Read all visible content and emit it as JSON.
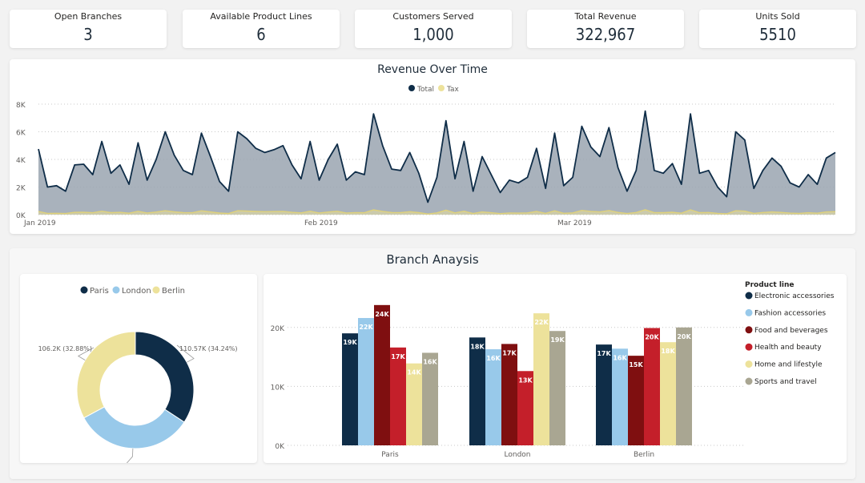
{
  "kpis": [
    {
      "label": "Open Branches",
      "value": "3"
    },
    {
      "label": "Available Product Lines",
      "value": "6"
    },
    {
      "label": "Customers Served",
      "value": "1,000"
    },
    {
      "label": "Total Revenue",
      "value": "322,967"
    },
    {
      "label": "Units Sold",
      "value": "5510"
    }
  ],
  "colors": {
    "navy": "#0f2d48",
    "area": "#9aa5b0",
    "tax": "#ede29b",
    "lightblue": "#98c9ea",
    "darkred": "#7f0f10",
    "red": "#c41f2a",
    "cream": "#ede29b",
    "gray": "#a9a692"
  },
  "chart_data": [
    {
      "type": "area",
      "title": "Revenue Over Time",
      "legend": [
        "Total",
        "Tax"
      ],
      "legend_position": "top-center",
      "ylim": [
        0,
        8000
      ],
      "yticks": [
        "0K",
        "2K",
        "4K",
        "6K",
        "8K"
      ],
      "xticks": [
        "Jan 2019",
        "Feb 2019",
        "Mar 2019"
      ],
      "grid": true,
      "series": [
        {
          "name": "Total",
          "values": [
            4750,
            2000,
            2100,
            1700,
            3600,
            3650,
            2900,
            5300,
            3000,
            3600,
            2200,
            5200,
            2500,
            4000,
            6000,
            4300,
            3200,
            2900,
            5900,
            4200,
            2400,
            1700,
            6000,
            5500,
            4800,
            4500,
            4700,
            5000,
            3600,
            2600,
            5300,
            2500,
            4000,
            5100,
            2500,
            3100,
            2900,
            7300,
            5000,
            3300,
            3200,
            4500,
            3000,
            900,
            2700,
            6800,
            2600,
            5300,
            1700,
            4200,
            2900,
            1600,
            2500,
            2300,
            2700,
            4800,
            1900,
            5900,
            2100,
            2700,
            6400,
            4900,
            4200,
            6300,
            3400,
            1700,
            3200,
            7500,
            3200,
            3000,
            3700,
            2200,
            7300,
            3000,
            3200,
            2000,
            1300,
            6000,
            5400,
            1900,
            3200,
            4100,
            3500,
            2300,
            2000,
            2900,
            2200,
            4100,
            4500
          ]
        },
        {
          "name": "Tax",
          "values": [
            230,
            95,
            100,
            80,
            170,
            175,
            140,
            250,
            145,
            170,
            105,
            245,
            120,
            190,
            285,
            205,
            150,
            140,
            280,
            200,
            115,
            80,
            285,
            260,
            230,
            215,
            225,
            240,
            170,
            125,
            250,
            120,
            190,
            245,
            120,
            150,
            140,
            350,
            240,
            155,
            150,
            215,
            145,
            45,
            130,
            325,
            125,
            250,
            80,
            200,
            140,
            75,
            120,
            110,
            130,
            230,
            90,
            280,
            100,
            130,
            305,
            235,
            200,
            300,
            160,
            80,
            155,
            355,
            150,
            145,
            175,
            105,
            350,
            145,
            155,
            95,
            60,
            285,
            255,
            90,
            155,
            195,
            165,
            110,
            95,
            140,
            105,
            195,
            215
          ]
        }
      ]
    },
    {
      "type": "pie",
      "title": "Branch Anaysis",
      "legend": [
        "Paris",
        "London",
        "Berlin"
      ],
      "legend_position": "top",
      "slices": [
        {
          "name": "Paris",
          "value": 110.57,
          "label": "110.57K (34.24%)"
        },
        {
          "name": "London",
          "value": 106.2,
          "label": "106.2K (32.88%)"
        },
        {
          "name": "Berlin",
          "value": 106.2,
          "label": "106.2K (32.88%)"
        }
      ]
    },
    {
      "type": "bar",
      "legend_title": "Product line",
      "legend_position": "right",
      "categories": [
        "Paris",
        "London",
        "Berlin"
      ],
      "ylim": [
        0,
        25000
      ],
      "yticks": [
        "0K",
        "10K",
        "20K"
      ],
      "series": [
        {
          "name": "Electronic accessories",
          "values": [
            19000,
            18300,
            17100
          ],
          "labels": [
            "19K",
            "18K",
            "17K"
          ]
        },
        {
          "name": "Fashion accessories",
          "values": [
            21600,
            16300,
            16400
          ],
          "labels": [
            "22K",
            "16K",
            "16K"
          ]
        },
        {
          "name": "Food and beverages",
          "values": [
            23800,
            17200,
            15200
          ],
          "labels": [
            "24K",
            "17K",
            "15K"
          ]
        },
        {
          "name": "Health and beauty",
          "values": [
            16600,
            12600,
            19900
          ],
          "labels": [
            "17K",
            "13K",
            "20K"
          ]
        },
        {
          "name": "Home and lifestyle",
          "values": [
            13900,
            22400,
            17500
          ],
          "labels": [
            "14K",
            "22K",
            "18K"
          ]
        },
        {
          "name": "Sports and travel",
          "values": [
            15700,
            19400,
            20000
          ],
          "labels": [
            "16K",
            "19K",
            "20K"
          ]
        }
      ]
    }
  ]
}
